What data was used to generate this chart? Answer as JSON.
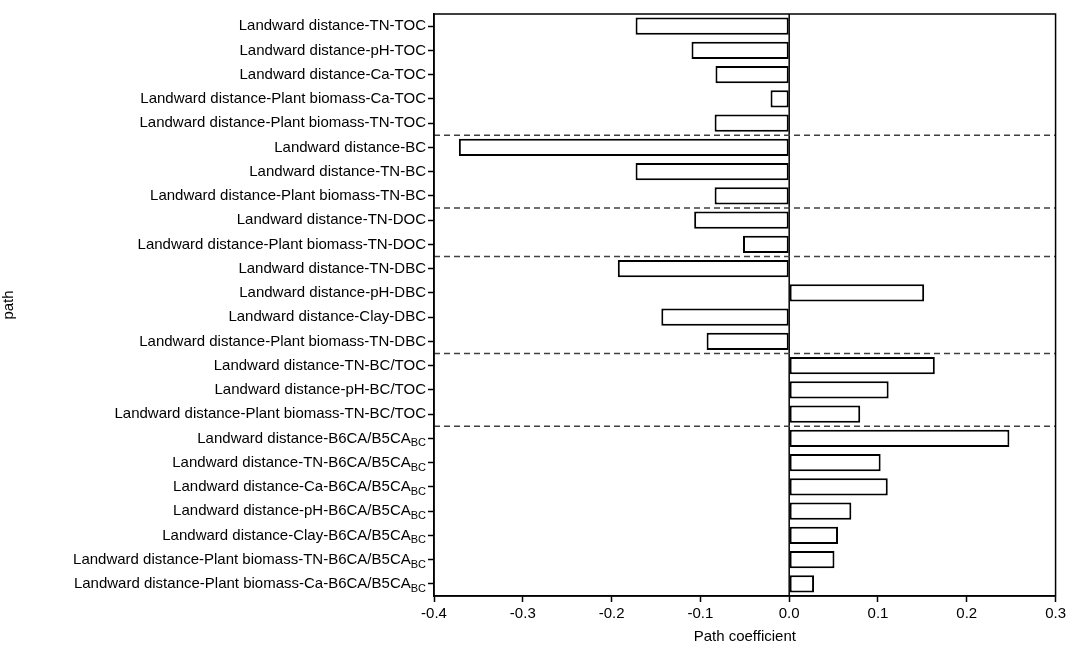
{
  "chart_data": {
    "type": "bar",
    "orientation": "horizontal",
    "xlabel": "Path coefficient",
    "ylabel": "path",
    "categories": [
      "Landward distance-TN-TOC",
      "Landward distance-pH-TOC",
      "Landward distance-Ca-TOC",
      "Landward distance-Plant biomass-Ca-TOC",
      "Landward distance-Plant biomass-TN-TOC",
      "Landward distance-BC",
      "Landward distance-TN-BC",
      "Landward distance-Plant biomass-TN-BC",
      "Landward distance-TN-DOC",
      "Landward distance-Plant biomass-TN-DOC",
      "Landward distance-TN-DBC",
      "Landward distance-pH-DBC",
      "Landward distance-Clay-DBC",
      "Landward distance-Plant biomass-TN-DBC",
      "Landward distance-TN-BC/TOC",
      "Landward distance-pH-BC/TOC",
      "Landward distance-Plant biomass-TN-BC/TOC",
      "Landward distance-B6CA/B5CA$_{BC}$",
      "Landward distance-TN-B6CA/B5CA$_{BC}$",
      "Landward distance-Ca-B6CA/B5CA$_{BC}$",
      "Landward distance-pH-B6CA/B5CA$_{BC}$",
      "Landward distance-Clay-B6CA/B5CA$_{BC}$",
      "Landward distance-Plant biomass-TN-B6CA/B5CA$_{BC}$",
      "Landward distance-Plant biomass-Ca-B6CA/B5CA$_{BC}$"
    ],
    "values": [
      -0.173,
      -0.11,
      -0.083,
      -0.021,
      -0.084,
      -0.372,
      -0.173,
      -0.084,
      -0.107,
      -0.052,
      -0.193,
      0.152,
      -0.144,
      -0.093,
      0.164,
      0.112,
      0.08,
      0.248,
      0.103,
      0.111,
      0.07,
      0.055,
      0.051,
      0.028
    ],
    "color": "#ffffff",
    "xlim": [
      -0.4,
      0.3
    ],
    "xticks": [
      -0.4,
      -0.3,
      -0.2,
      -0.1,
      {
        "value": 0,
        "label": "0.0"
      },
      0.1,
      0.2,
      0.3
    ],
    "grid": false,
    "legend": false,
    "ref_lines": [
      {
        "axis": "x",
        "value": 0,
        "color": "#000000",
        "line_style": "solid"
      }
    ]
  }
}
